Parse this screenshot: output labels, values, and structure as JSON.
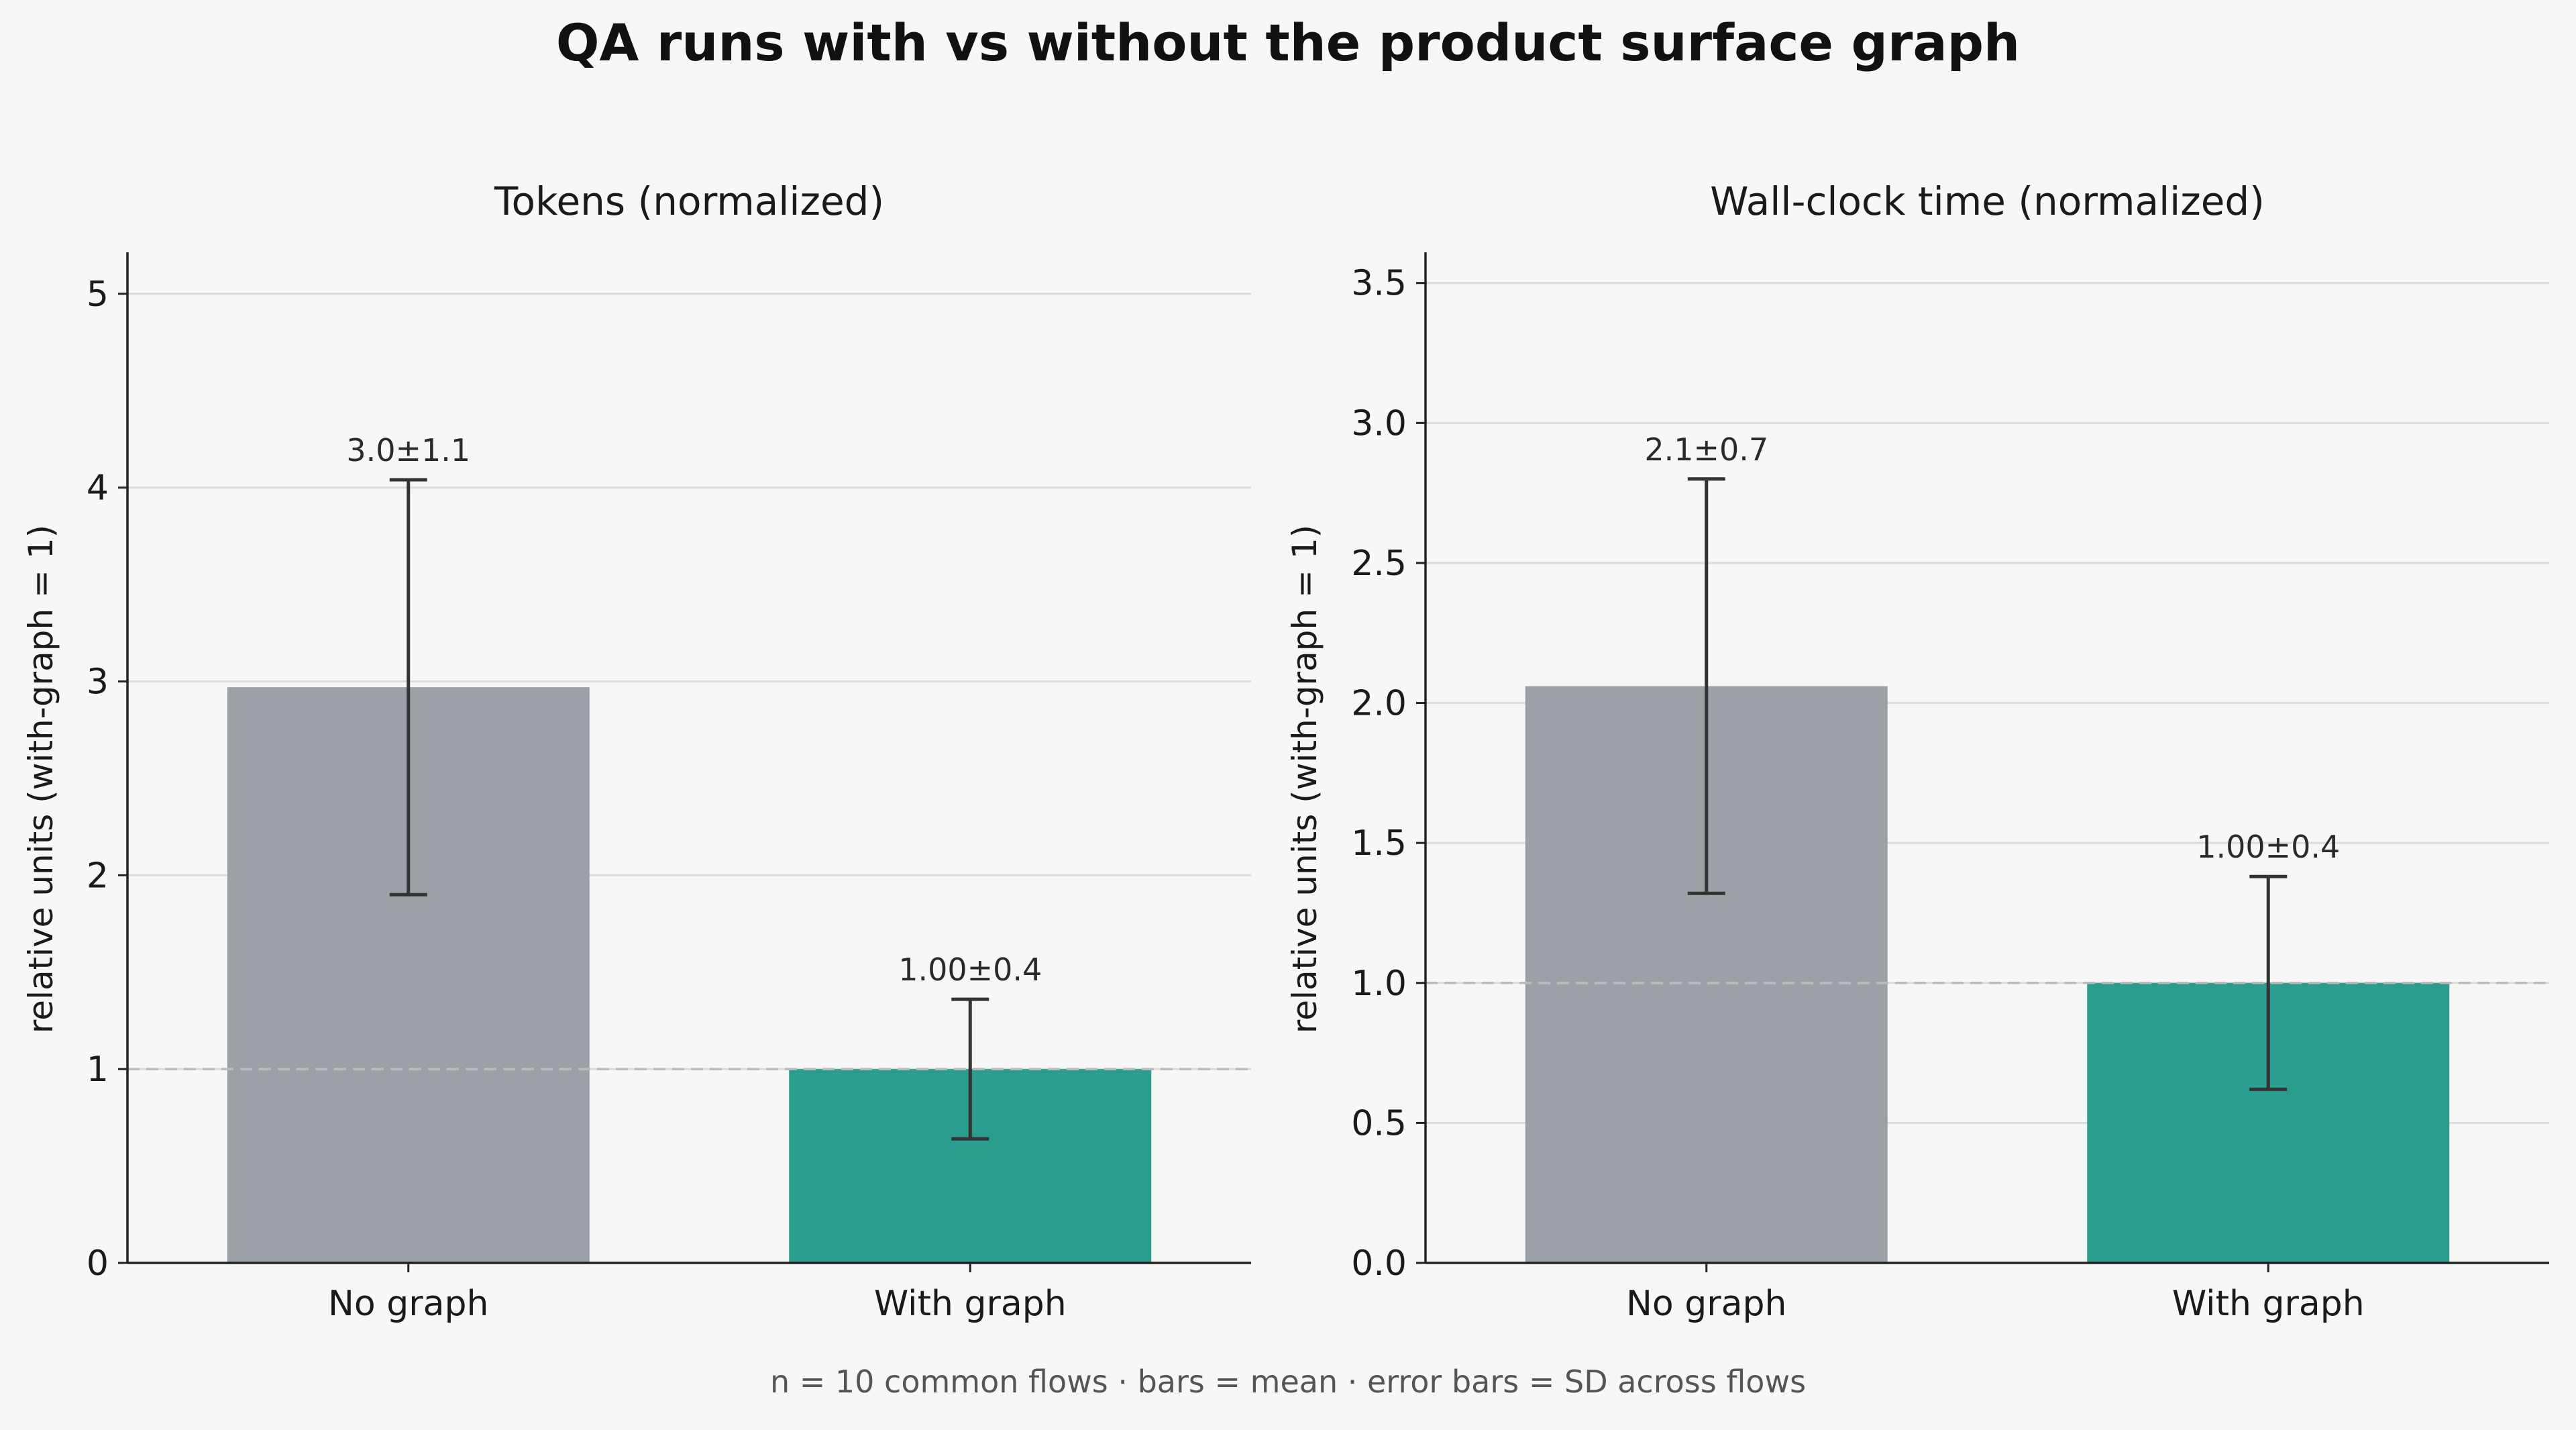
{
  "title": "QA runs with vs without the product surface graph",
  "footnote": "n = 10 common flows · bars = mean · error bars = SD across flows",
  "colors": {
    "no_graph": "#9ca0a7",
    "with_graph": "#2a9d8f",
    "background": "#f7f7f5",
    "grid": "#dcdcdc",
    "reference_line": "#bbbbbb",
    "error_bar": "#333333"
  },
  "chart_data": [
    {
      "type": "bar",
      "title": "Tokens (normalized)",
      "ylabel": "relative units (with-graph = 1)",
      "xlabel": "",
      "categories": [
        "No graph",
        "With graph"
      ],
      "values": [
        2.97,
        1.0
      ],
      "errors": [
        1.07,
        0.36
      ],
      "data_labels": [
        "3.0±1.1",
        "1.00±0.4"
      ],
      "ylim": [
        0,
        5.2
      ],
      "yticks": [
        0,
        1,
        2,
        3,
        4,
        5
      ],
      "ytick_labels": [
        "0",
        "1",
        "2",
        "3",
        "4",
        "5"
      ],
      "reference_line": 1,
      "grid": "y"
    },
    {
      "type": "bar",
      "title": "Wall-clock time (normalized)",
      "ylabel": "relative units (with-graph = 1)",
      "xlabel": "",
      "categories": [
        "No graph",
        "With graph"
      ],
      "values": [
        2.06,
        1.0
      ],
      "errors": [
        0.74,
        0.38
      ],
      "data_labels": [
        "2.1±0.7",
        "1.00±0.4"
      ],
      "ylim": [
        0,
        3.6
      ],
      "yticks": [
        0,
        0.5,
        1,
        1.5,
        2,
        2.5,
        3,
        3.5
      ],
      "ytick_labels": [
        "0.0",
        "0.5",
        "1.0",
        "1.5",
        "2.0",
        "2.5",
        "3.0",
        "3.5"
      ],
      "reference_line": 1,
      "grid": "y"
    }
  ]
}
